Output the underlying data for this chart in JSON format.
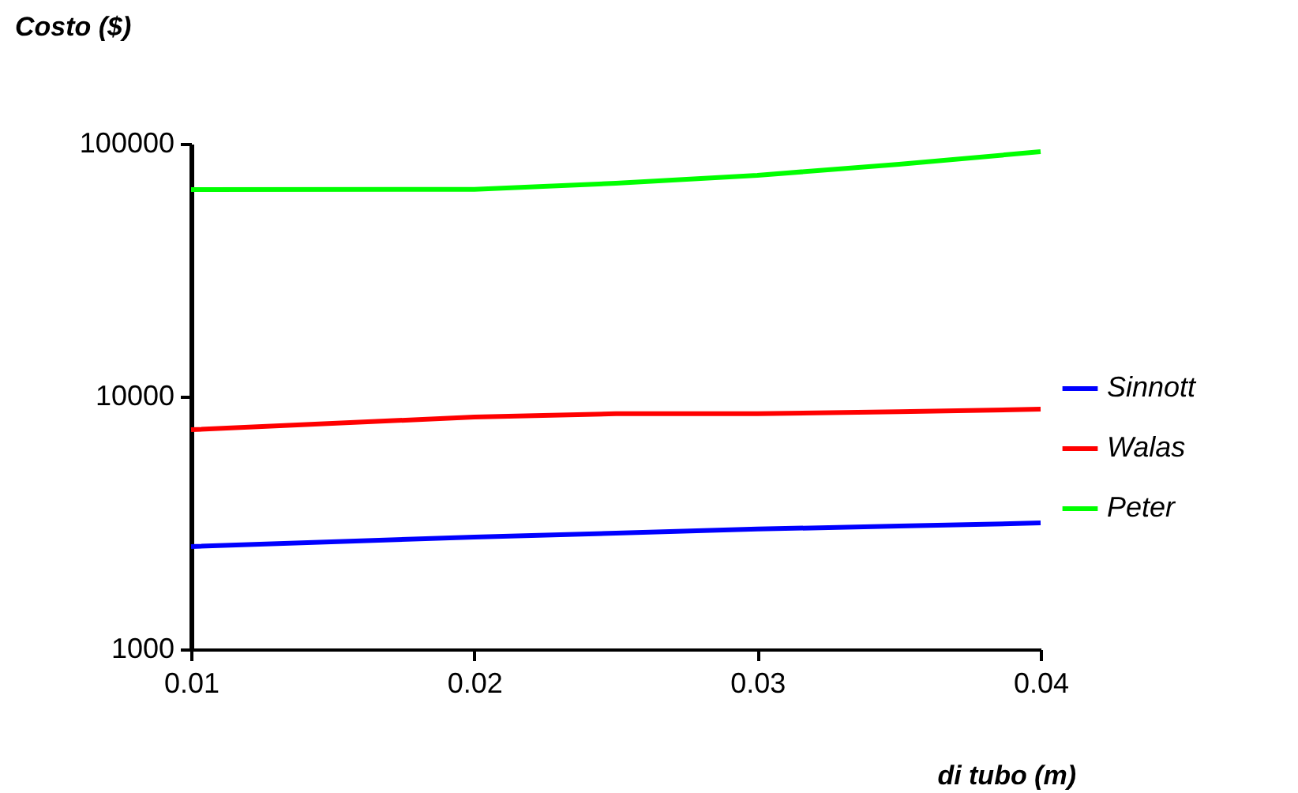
{
  "chart_data": {
    "type": "line",
    "xlabel": "di tubo (m)",
    "ylabel": "Costo ($)",
    "log": "y",
    "x": [
      0.01,
      0.02,
      0.025,
      0.03,
      0.035,
      0.04
    ],
    "series": [
      {
        "name": "Sinnott",
        "color": "#0000ff",
        "values": [
          2550,
          2780,
          2880,
          2990,
          3070,
          3160
        ]
      },
      {
        "name": "Walas",
        "color": "#ff0000",
        "values": [
          7390,
          8290,
          8550,
          8550,
          8700,
          8910
        ]
      },
      {
        "name": "Peter",
        "color": "#00ff00",
        "values": [
          65900,
          66000,
          69800,
          75000,
          83000,
          93000
        ]
      }
    ],
    "xlim": [
      0.01,
      0.04
    ],
    "xticks": [
      0.01,
      0.02,
      0.03,
      0.04
    ],
    "ylim": [
      1000,
      100000
    ],
    "yticks": [
      1000,
      10000,
      100000
    ],
    "grid": false,
    "legend": "right",
    "marker": "none",
    "line_style": "solid"
  }
}
